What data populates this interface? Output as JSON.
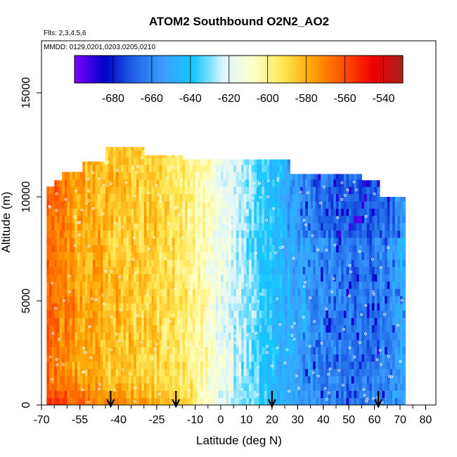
{
  "chart_data": {
    "type": "heatmap",
    "title": "ATOM2 Southbound O2N2_AO2",
    "subtitle_flights": "Flts: 2,3,4,5,6",
    "subtitle_dates": "MMDD: 0129,0201,0203,0205,0210",
    "xlabel": "Latitude (deg N)",
    "ylabel": "Altitude (m)",
    "xlim": [
      -70,
      84
    ],
    "ylim": [
      0,
      17500
    ],
    "x_ticks": [
      -70,
      -55,
      -40,
      -25,
      -10,
      0,
      10,
      20,
      30,
      40,
      50,
      60,
      70,
      80
    ],
    "x_tick_labels": [
      "-70",
      "-55",
      "-40",
      "-25",
      "-10",
      "0",
      "10",
      "20",
      "30",
      "40",
      "50",
      "60",
      "70",
      "80"
    ],
    "y_ticks": [
      0,
      5000,
      10000,
      15000
    ],
    "y_tick_labels": [
      "0",
      "5000",
      "10000",
      "15000"
    ],
    "colorbar": {
      "range": [
        -700,
        -530
      ],
      "tick_values": [
        -680,
        -660,
        -640,
        -620,
        -600,
        -580,
        -560,
        -540
      ],
      "tick_labels": [
        "-680",
        "-660",
        "-640",
        "-620",
        "-600",
        "-580",
        "-560",
        "-540"
      ],
      "stops": [
        "#7f00ff",
        "#0000c8",
        "#1e64e6",
        "#3ca0ff",
        "#14c8ff",
        "#dcf5ff",
        "#ffffc8",
        "#ffe650",
        "#ffa000",
        "#ff5000",
        "#f00000",
        "#aa1e1e"
      ]
    },
    "latitude_bands": [
      {
        "lat": -67,
        "value": -566
      },
      {
        "lat": -55,
        "value": -578
      },
      {
        "lat": -40,
        "value": -584
      },
      {
        "lat": -25,
        "value": -588
      },
      {
        "lat": -15,
        "value": -596
      },
      {
        "lat": -7,
        "value": -605
      },
      {
        "lat": 0,
        "value": -618
      },
      {
        "lat": 10,
        "value": -630
      },
      {
        "lat": 20,
        "value": -642
      },
      {
        "lat": 30,
        "value": -652
      },
      {
        "lat": 40,
        "value": -660
      },
      {
        "lat": 50,
        "value": -664
      },
      {
        "lat": 60,
        "value": -664
      },
      {
        "lat": 70,
        "value": -652
      }
    ],
    "data_extent": {
      "lat": [
        -68,
        72
      ],
      "max_altitude_m": 12400
    },
    "profile_arrows_lat": [
      -43,
      -17.5,
      20,
      61.5
    ],
    "grid": false,
    "legend_position": "top"
  }
}
